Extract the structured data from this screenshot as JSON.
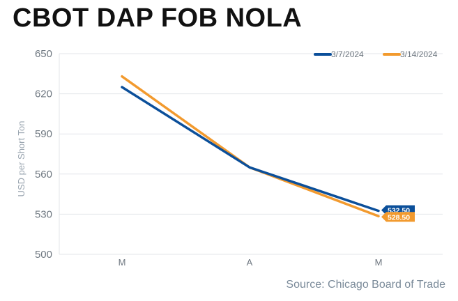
{
  "title": "CBOT DAP FOB NOLA",
  "source": "Source: Chicago Board of Trade",
  "chart_data": {
    "type": "line",
    "title": "CBOT DAP FOB NOLA",
    "xlabel": "",
    "ylabel": "USD per Short Ton",
    "categories": [
      "M",
      "A",
      "M"
    ],
    "ylim": [
      500,
      650
    ],
    "yticks": [
      500,
      530,
      560,
      590,
      620,
      650
    ],
    "grid": "horizontal",
    "legend": "top-right",
    "series": [
      {
        "name": "3/7/2024",
        "color": "#0b4f9a",
        "values": [
          625,
          565,
          532.5
        ],
        "end_label": "532.50"
      },
      {
        "name": "3/14/2024",
        "color": "#f29a2e",
        "values": [
          633,
          565,
          528.5
        ],
        "end_label": "528.50"
      }
    ]
  }
}
